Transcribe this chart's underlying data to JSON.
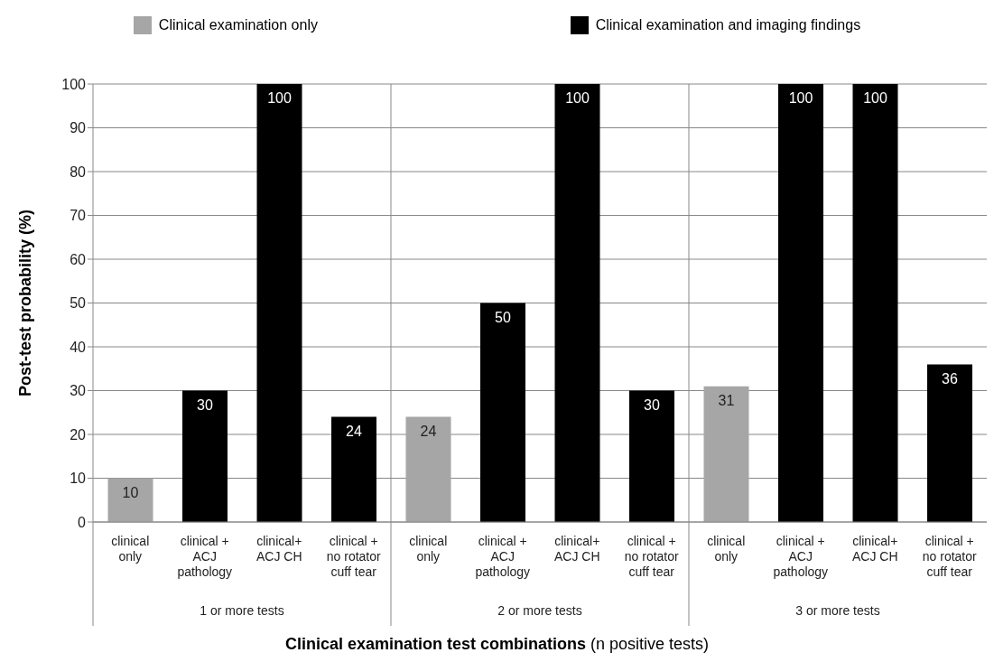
{
  "chart_data": {
    "type": "bar",
    "stacked": true,
    "categories": [
      "clinical only",
      "clinical + ACJ pathology",
      "clinical+ ACJ CH",
      "clinical + no rotator cuff tear",
      "clinical only",
      "clinical + ACJ pathology",
      "clinical+ ACJ CH",
      "clinical + no rotator cuff tear",
      "clinical only",
      "clinical + ACJ pathology",
      "clinical+ ACJ CH",
      "clinical + no rotator cuff tear"
    ],
    "series": [
      {
        "name": "Clinical examination only",
        "color": "#a6a6a6",
        "values": [
          10,
          null,
          null,
          null,
          24,
          null,
          null,
          null,
          31,
          null,
          null,
          null
        ]
      },
      {
        "name": "Clinical examination and imaging findings",
        "color": "#000000",
        "values": [
          null,
          30,
          100,
          24,
          null,
          50,
          100,
          30,
          null,
          100,
          100,
          36
        ]
      }
    ],
    "ylim": [
      0,
      100
    ],
    "yticks": [
      0,
      10,
      20,
      30,
      40,
      50,
      60,
      70,
      80,
      90,
      100
    ],
    "grid": "y",
    "legend": "top",
    "data_labels": true,
    "ylabel": "Post-test probability (%)",
    "xlabel": "Clinical examination test combinations (n positive tests)",
    "annotations": [
      "1 or more tests",
      "2 or more tests",
      "3 or more tests"
    ]
  }
}
